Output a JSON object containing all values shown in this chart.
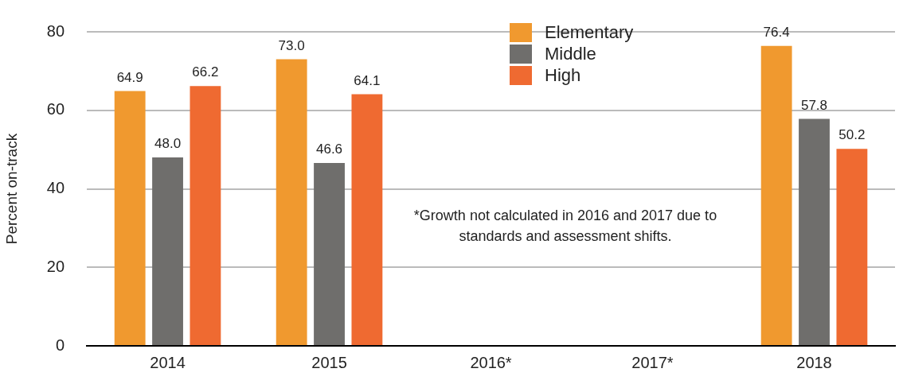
{
  "chart_data": {
    "type": "bar",
    "ylabel": "Percent on-track",
    "categories": [
      "2014",
      "2015",
      "2016*",
      "2017*",
      "2018"
    ],
    "series": [
      {
        "name": "Elementary",
        "color": "#f0992f",
        "values": [
          64.9,
          73.0,
          null,
          null,
          76.4
        ],
        "value_labels": [
          "64.9",
          "73.0",
          null,
          null,
          "76.4"
        ]
      },
      {
        "name": "Middle",
        "color": "#6f6e6c",
        "values": [
          48.0,
          46.6,
          null,
          null,
          57.8
        ],
        "value_labels": [
          "48.0",
          "46.6",
          null,
          null,
          "57.8"
        ]
      },
      {
        "name": "High",
        "color": "#ef6a31",
        "values": [
          66.2,
          64.1,
          null,
          null,
          50.2
        ],
        "value_labels": [
          "66.2",
          "64.1",
          null,
          null,
          "50.2"
        ]
      }
    ],
    "ylim": [
      0,
      80
    ],
    "yticks": [
      0,
      20,
      40,
      60,
      80
    ],
    "grid": "y",
    "legend": "top",
    "annotations": [
      "*Growth not calculated in 2016 and 2017 due to standards and assessment shifts."
    ]
  }
}
